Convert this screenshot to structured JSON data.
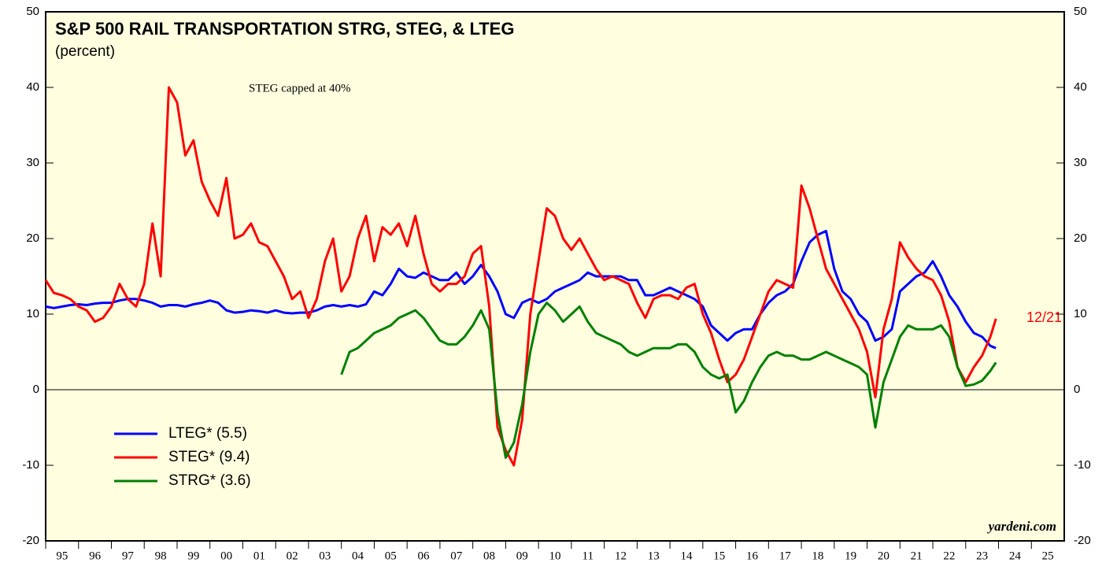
{
  "chart_data": {
    "type": "line",
    "title": "S&P 500 RAIL TRANSPORTATION STRG, STEG, & LTEG",
    "subtitle": "(percent)",
    "annotations": [
      "STEG capped at 40%",
      "12/21",
      "yardeni.com"
    ],
    "x": [
      1995,
      1995.25,
      1995.5,
      1995.75,
      1996,
      1996.25,
      1996.5,
      1996.75,
      1997,
      1997.25,
      1997.5,
      1997.75,
      1998,
      1998.25,
      1998.5,
      1998.75,
      1999,
      1999.25,
      1999.5,
      1999.75,
      2000,
      2000.25,
      2000.5,
      2000.75,
      2001,
      2001.25,
      2001.5,
      2001.75,
      2002,
      2002.25,
      2002.5,
      2002.75,
      2003,
      2003.25,
      2003.5,
      2003.75,
      2004,
      2004.25,
      2004.5,
      2004.75,
      2005,
      2005.25,
      2005.5,
      2005.75,
      2006,
      2006.25,
      2006.5,
      2006.75,
      2007,
      2007.25,
      2007.5,
      2007.75,
      2008,
      2008.25,
      2008.5,
      2008.75,
      2009,
      2009.25,
      2009.5,
      2009.75,
      2010,
      2010.25,
      2010.5,
      2010.75,
      2011,
      2011.25,
      2011.5,
      2011.75,
      2012,
      2012.25,
      2012.5,
      2012.75,
      2013,
      2013.25,
      2013.5,
      2013.75,
      2014,
      2014.25,
      2014.5,
      2014.75,
      2015,
      2015.25,
      2015.5,
      2015.75,
      2016,
      2016.25,
      2016.5,
      2016.75,
      2017,
      2017.25,
      2017.5,
      2017.75,
      2018,
      2018.25,
      2018.5,
      2018.75,
      2019,
      2019.25,
      2019.5,
      2019.75,
      2020,
      2020.25,
      2020.5,
      2020.75,
      2021,
      2021.25,
      2021.5,
      2021.75,
      2022,
      2022.25,
      2022.5,
      2022.75,
      2023,
      2023.25,
      2023.5,
      2023.75,
      2023.92
    ],
    "series": [
      {
        "name": "LTEG* (5.5)",
        "color": "#0000ff",
        "values": [
          11,
          10.8,
          11,
          11.2,
          11.3,
          11.2,
          11.4,
          11.5,
          11.5,
          11.8,
          12,
          12,
          11.8,
          11.5,
          11,
          11.2,
          11.2,
          11,
          11.3,
          11.5,
          11.8,
          11.5,
          10.5,
          10.2,
          10.3,
          10.5,
          10.4,
          10.2,
          10.5,
          10.2,
          10.1,
          10.2,
          10.2,
          10.5,
          11,
          11.2,
          11,
          11.2,
          11,
          11.3,
          13,
          12.5,
          14,
          16,
          15,
          14.8,
          15.5,
          15,
          14.5,
          14.5,
          15.5,
          14,
          15,
          16.5,
          15,
          13,
          10,
          9.5,
          11.5,
          12,
          11.5,
          12,
          13,
          13.5,
          14,
          14.5,
          15.5,
          15,
          15,
          15,
          15,
          14.5,
          14.5,
          12.5,
          12.5,
          13,
          13.5,
          13,
          12.5,
          12,
          11,
          8.5,
          7.5,
          6.5,
          7.5,
          8,
          8,
          10,
          11.5,
          12.5,
          13,
          14,
          17,
          19.5,
          20.5,
          21,
          16,
          13,
          12,
          10,
          9,
          6.5,
          7,
          8,
          13,
          14,
          15,
          15.5,
          17,
          15,
          12.5,
          11,
          9,
          7.5,
          7,
          5.8,
          5.5
        ]
      },
      {
        "name": "STEG* (9.4)",
        "color": "#ff0000",
        "values": [
          14.5,
          12.8,
          12.5,
          12,
          11,
          10.5,
          9,
          9.5,
          11,
          14,
          12,
          11,
          14,
          22,
          15,
          40,
          38,
          31,
          33,
          27.5,
          25,
          23,
          28,
          20,
          20.5,
          22,
          19.5,
          19,
          17,
          15,
          12,
          13,
          9.5,
          12,
          17,
          20,
          13,
          15,
          20,
          23,
          17,
          21.5,
          20.5,
          22,
          19,
          23,
          18,
          14,
          13,
          14,
          14,
          15,
          18,
          19,
          11,
          -5,
          -8,
          -10,
          -4,
          10,
          17,
          24,
          23,
          20,
          18.5,
          20,
          18,
          16,
          14.5,
          15,
          14.5,
          14,
          11.5,
          9.5,
          12,
          12.5,
          12.5,
          12,
          13.5,
          14,
          10,
          7.5,
          4,
          1,
          2,
          4,
          7,
          10,
          13,
          14.5,
          14,
          13.5,
          27,
          24,
          20,
          16,
          14,
          12,
          10,
          8,
          5,
          -1,
          8,
          12,
          19.5,
          17.5,
          16,
          15,
          14.5,
          12.5,
          9,
          3,
          1,
          3,
          4.5,
          7,
          9.4
        ]
      },
      {
        "name": "STRG* (3.6)",
        "color": "#008000",
        "values": [
          null,
          null,
          null,
          null,
          null,
          null,
          null,
          null,
          null,
          null,
          null,
          null,
          null,
          null,
          null,
          null,
          null,
          null,
          null,
          null,
          null,
          null,
          null,
          null,
          null,
          null,
          null,
          null,
          null,
          null,
          null,
          null,
          null,
          null,
          null,
          null,
          2,
          5,
          5.5,
          6.5,
          7.5,
          8,
          8.5,
          9.5,
          10,
          10.5,
          9.5,
          8,
          6.5,
          6,
          6,
          7,
          8.5,
          10.5,
          8,
          -3,
          -9,
          -7,
          -2,
          5,
          10,
          11.5,
          10.5,
          9,
          10,
          11,
          9,
          7.5,
          7,
          6.5,
          6,
          5,
          4.5,
          5,
          5.5,
          5.5,
          5.5,
          6,
          6,
          5,
          3,
          2,
          1.5,
          2,
          -3,
          -1.5,
          1,
          3,
          4.5,
          5,
          4.5,
          4.5,
          4,
          4,
          4.5,
          5,
          4.5,
          4,
          3.5,
          3,
          2,
          -5,
          1,
          4,
          7,
          8.5,
          8,
          8,
          8,
          8.5,
          7,
          3,
          0.5,
          0.7,
          1.2,
          2.5,
          3.6
        ]
      }
    ],
    "xlim": [
      1995,
      2026
    ],
    "xticks": [
      {
        "value": 1995,
        "label": "95"
      },
      {
        "value": 1996,
        "label": "96"
      },
      {
        "value": 1997,
        "label": "97"
      },
      {
        "value": 1998,
        "label": "98"
      },
      {
        "value": 1999,
        "label": "99"
      },
      {
        "value": 2000,
        "label": "00"
      },
      {
        "value": 2001,
        "label": "01"
      },
      {
        "value": 2002,
        "label": "02"
      },
      {
        "value": 2003,
        "label": "03"
      },
      {
        "value": 2004,
        "label": "04"
      },
      {
        "value": 2005,
        "label": "05"
      },
      {
        "value": 2006,
        "label": "06"
      },
      {
        "value": 2007,
        "label": "07"
      },
      {
        "value": 2008,
        "label": "08"
      },
      {
        "value": 2009,
        "label": "09"
      },
      {
        "value": 2010,
        "label": "10"
      },
      {
        "value": 2011,
        "label": "11"
      },
      {
        "value": 2012,
        "label": "12"
      },
      {
        "value": 2013,
        "label": "13"
      },
      {
        "value": 2014,
        "label": "14"
      },
      {
        "value": 2015,
        "label": "15"
      },
      {
        "value": 2016,
        "label": "16"
      },
      {
        "value": 2017,
        "label": "17"
      },
      {
        "value": 2018,
        "label": "18"
      },
      {
        "value": 2019,
        "label": "19"
      },
      {
        "value": 2020,
        "label": "20"
      },
      {
        "value": 2021,
        "label": "21"
      },
      {
        "value": 2022,
        "label": "22"
      },
      {
        "value": 2023,
        "label": "23"
      },
      {
        "value": 2024,
        "label": "24"
      },
      {
        "value": 2025,
        "label": "25"
      }
    ],
    "ylim": [
      -20,
      50
    ],
    "yticks": [
      -20,
      -10,
      0,
      10,
      20,
      30,
      40,
      50
    ],
    "y2lim": [
      -20,
      50
    ],
    "y2ticks": [
      -20,
      -10,
      0,
      10,
      20,
      30,
      40,
      50
    ],
    "legend": "lower left"
  }
}
